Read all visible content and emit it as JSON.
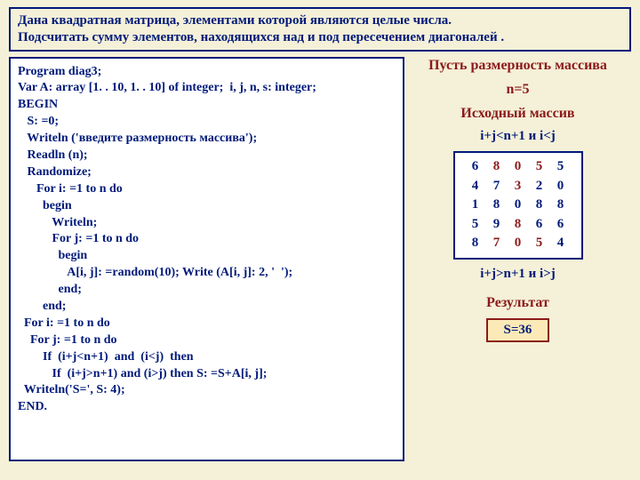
{
  "task": {
    "line1": "Дана  квадратная  матрица,  элементами  которой  являются  целые  числа.",
    "line2": "Подсчитать сумму элементов, находящихся над и под пересечением диагоналей ."
  },
  "code": "Program diag3;\nVar A: array [1. . 10, 1. . 10] of integer;  i, j, n, s: integer;\nBEGIN\n   S: =0;\n   Writeln ('введите размерность массива');\n   Readln (n);\n   Randomize;\n      For i: =1 to n do\n        begin\n           Writeln;\n           For j: =1 to n do\n             begin\n                A[i, j]: =random(10); Write (A[i, j]: 2, '  ');\n             end;\n        end;\n  For i: =1 to n do\n    For j: =1 to n do\n        If  (i+j<n+1)  and  (i<j)  then\n           If  (i+j>n+1) and (i>j) then S: =S+A[i, j];\n  Writeln('S=', S: 4);\nEND.",
  "side": {
    "dim_label": "Пусть размерность массива",
    "n_value": "n=5",
    "src_label": "Исходный массив",
    "cond_top": "i+j<n+1 и i<j",
    "cond_bot": "i+j>n+1 и i>j",
    "result_label": "Результат",
    "result_value": "S=36"
  },
  "matrix": {
    "rows": [
      [
        {
          "v": "6",
          "c": "blue"
        },
        {
          "v": "8",
          "c": "red"
        },
        {
          "v": "0",
          "c": "red"
        },
        {
          "v": "5",
          "c": "red"
        },
        {
          "v": "5",
          "c": "blue"
        }
      ],
      [
        {
          "v": "4",
          "c": "blue"
        },
        {
          "v": "7",
          "c": "blue"
        },
        {
          "v": "3",
          "c": "red"
        },
        {
          "v": "2",
          "c": "blue"
        },
        {
          "v": "0",
          "c": "blue"
        }
      ],
      [
        {
          "v": "1",
          "c": "blue"
        },
        {
          "v": "8",
          "c": "blue"
        },
        {
          "v": "0",
          "c": "blue"
        },
        {
          "v": "8",
          "c": "blue"
        },
        {
          "v": "8",
          "c": "blue"
        }
      ],
      [
        {
          "v": "5",
          "c": "blue"
        },
        {
          "v": "9",
          "c": "blue"
        },
        {
          "v": "8",
          "c": "red"
        },
        {
          "v": "6",
          "c": "blue"
        },
        {
          "v": "6",
          "c": "blue"
        }
      ],
      [
        {
          "v": "8",
          "c": "blue"
        },
        {
          "v": "7",
          "c": "red"
        },
        {
          "v": "0",
          "c": "red"
        },
        {
          "v": "5",
          "c": "red"
        },
        {
          "v": "4",
          "c": "blue"
        }
      ]
    ]
  },
  "colors": {
    "page_bg": "#f5f0d8",
    "box_bg": "#ffffff",
    "blue": "#001a7a",
    "red": "#8b1a1a",
    "result_bg": "#fbeab8"
  }
}
